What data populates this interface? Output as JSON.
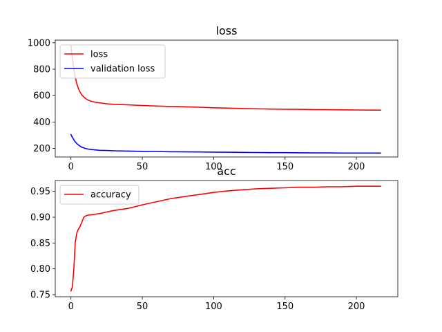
{
  "chart_data": [
    {
      "type": "line",
      "title": "loss",
      "xlabel": "",
      "ylabel": "",
      "xlim": [
        -11,
        229
      ],
      "ylim": [
        135,
        1020
      ],
      "xticks": [
        0,
        50,
        100,
        150,
        200
      ],
      "yticks": [
        200,
        400,
        600,
        800,
        1000
      ],
      "grid": false,
      "legend_position": "upper-left",
      "series": [
        {
          "name": "loss",
          "color": "#ff0000",
          "x": [
            0,
            1,
            2,
            3,
            4,
            5,
            6,
            7,
            8,
            9,
            10,
            12,
            14,
            16,
            18,
            20,
            25,
            30,
            40,
            50,
            60,
            70,
            80,
            90,
            100,
            110,
            120,
            130,
            140,
            150,
            160,
            170,
            180,
            190,
            200,
            210,
            217
          ],
          "y": [
            980,
            880,
            800,
            740,
            695,
            660,
            635,
            615,
            600,
            590,
            580,
            566,
            558,
            552,
            548,
            545,
            538,
            534,
            530,
            525,
            521,
            518,
            515,
            512,
            508,
            505,
            502,
            500,
            498,
            497,
            496,
            494,
            493,
            492,
            491,
            490,
            490
          ]
        },
        {
          "name": "validation loss",
          "color": "#0000ff",
          "x": [
            0,
            1,
            2,
            3,
            4,
            5,
            6,
            7,
            8,
            9,
            10,
            12,
            14,
            16,
            18,
            20,
            25,
            30,
            40,
            50,
            60,
            70,
            80,
            90,
            100,
            110,
            120,
            130,
            140,
            150,
            160,
            170,
            180,
            190,
            200,
            210,
            217
          ],
          "y": [
            305,
            285,
            265,
            250,
            238,
            228,
            220,
            213,
            208,
            204,
            200,
            195,
            192,
            190,
            188,
            186,
            184,
            182,
            180,
            178,
            177,
            175,
            174,
            173,
            172,
            171,
            170,
            169,
            168,
            168,
            167,
            166,
            166,
            165,
            165,
            165,
            165
          ]
        }
      ]
    },
    {
      "type": "line",
      "title": "acc",
      "xlabel": "",
      "ylabel": "",
      "xlim": [
        -11,
        229
      ],
      "ylim": [
        0.746,
        0.971
      ],
      "xticks": [
        0,
        50,
        100,
        150,
        200
      ],
      "yticks": [
        0.75,
        0.8,
        0.85,
        0.9,
        0.95
      ],
      "ytick_labels": [
        "0.75",
        "0.80",
        "0.85",
        "0.90",
        "0.95"
      ],
      "grid": false,
      "legend_position": "upper-left",
      "series": [
        {
          "name": "accuracy",
          "color": "#ff0000",
          "x": [
            0,
            1,
            2,
            3,
            4,
            5,
            6,
            7,
            8,
            9,
            10,
            12,
            15,
            20,
            25,
            30,
            40,
            50,
            60,
            70,
            80,
            90,
            100,
            110,
            120,
            130,
            140,
            150,
            160,
            170,
            180,
            190,
            200,
            210,
            217
          ],
          "y": [
            0.757,
            0.765,
            0.8,
            0.85,
            0.868,
            0.876,
            0.88,
            0.886,
            0.893,
            0.9,
            0.902,
            0.904,
            0.905,
            0.907,
            0.91,
            0.913,
            0.917,
            0.924,
            0.93,
            0.936,
            0.94,
            0.944,
            0.948,
            0.951,
            0.953,
            0.955,
            0.956,
            0.957,
            0.958,
            0.958,
            0.959,
            0.959,
            0.96,
            0.96,
            0.96
          ]
        }
      ]
    }
  ]
}
